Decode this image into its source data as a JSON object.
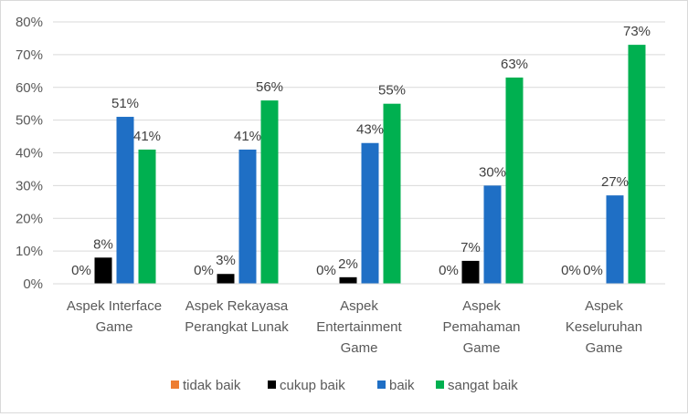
{
  "chart_data": {
    "type": "bar",
    "categories": [
      [
        "Aspek Interface",
        "Game"
      ],
      [
        "Aspek Rekayasa",
        "Perangkat Lunak"
      ],
      [
        "Aspek",
        "Entertainment",
        "Game"
      ],
      [
        "Aspek",
        "Pemahaman",
        "Game"
      ],
      [
        "Aspek",
        "Keseluruhan",
        "Game"
      ]
    ],
    "series": [
      {
        "name": "tidak baik",
        "color": "#ed7d31",
        "values": [
          0,
          0,
          0,
          0,
          0
        ],
        "labels": [
          "0%",
          "0%",
          "0%",
          "0%",
          "0%"
        ]
      },
      {
        "name": "cukup baik",
        "color": "#000000",
        "values": [
          8,
          3,
          2,
          7,
          0
        ],
        "labels": [
          "8%",
          "3%",
          "2%",
          "7%",
          "0%"
        ]
      },
      {
        "name": "baik",
        "color": "#1f6fc5",
        "values": [
          51,
          41,
          43,
          30,
          27
        ],
        "labels": [
          "51%",
          "41%",
          "43%",
          "30%",
          "27%"
        ]
      },
      {
        "name": "sangat baik",
        "color": "#00b050",
        "values": [
          41,
          56,
          55,
          63,
          73
        ],
        "labels": [
          "41%",
          "56%",
          "55%",
          "63%",
          "73%"
        ]
      }
    ],
    "ylim": [
      0,
      80
    ],
    "yticks": [
      "0%",
      "10%",
      "20%",
      "30%",
      "40%",
      "50%",
      "60%",
      "70%",
      "80%"
    ],
    "grid": true,
    "legend_position": "bottom"
  }
}
